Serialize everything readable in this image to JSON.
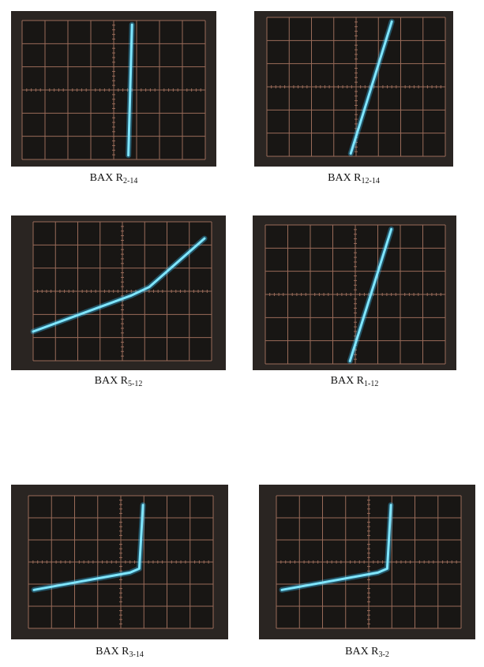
{
  "figures": [
    {
      "caption": {
        "main": "BAX R",
        "sub": "2-14"
      },
      "trace": "steep-vertical"
    },
    {
      "caption": {
        "main": "BAX R",
        "sub": "12-14"
      },
      "trace": "steep-diagonal"
    },
    {
      "caption": {
        "main": "BAX R",
        "sub": "5-12"
      },
      "trace": "bent-shallow-then-steeper"
    },
    {
      "caption": {
        "main": "BAX R",
        "sub": "1-12"
      },
      "trace": "steep-diagonal"
    },
    {
      "caption": {
        "main": "BAX R",
        "sub": "3-14"
      },
      "trace": "shallow-then-vertical"
    },
    {
      "caption": {
        "main": "BAX R",
        "sub": "3-2"
      },
      "trace": "shallow-then-vertical"
    }
  ],
  "colors": {
    "screen_bg": "#181614",
    "bezel": "#2a2522",
    "grid": "#b07a66",
    "trace": "#7fe6ff",
    "trace_glow": "#39c8ff"
  }
}
